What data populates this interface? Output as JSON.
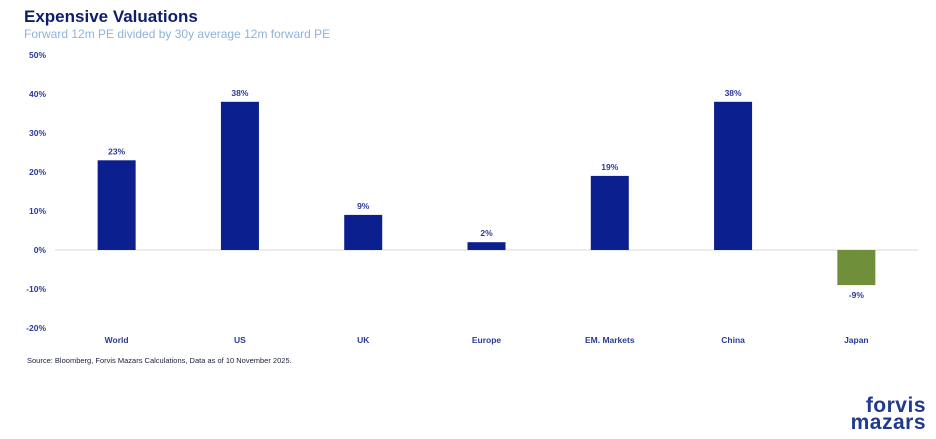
{
  "header": {
    "title": "Expensive Valuations",
    "subtitle": "Forward 12m PE divided by 30y average 12m forward PE"
  },
  "footer": {
    "source": "Source: Bloomberg, Forvis Mazars Calculations, Data as of 10 November 2025.",
    "logo_line1": "forvis",
    "logo_line2": "mazars"
  },
  "colors": {
    "bar_primary": "#0b1f8f",
    "bar_negative": "#6f8f3a",
    "text_dark": "#0d1f6b",
    "subtitle": "#8fb3d9"
  },
  "chart_data": {
    "type": "bar",
    "title": "Expensive Valuations",
    "subtitle": "Forward 12m PE divided by 30y average 12m forward PE",
    "xlabel": "",
    "ylabel": "",
    "categories": [
      "World",
      "US",
      "UK",
      "Europe",
      "EM. Markets",
      "China",
      "Japan"
    ],
    "values": [
      23,
      38,
      9,
      2,
      19,
      38,
      -9
    ],
    "data_labels": [
      "23%",
      "38%",
      "9%",
      "2%",
      "19%",
      "38%",
      "-9%"
    ],
    "ylim": [
      -20,
      50
    ],
    "yticks": [
      50,
      40,
      30,
      20,
      10,
      0,
      -10,
      -20
    ],
    "ytick_labels": [
      "50%",
      "40%",
      "30%",
      "20%",
      "10%",
      "0%",
      "-10%",
      "-20%"
    ],
    "grid": false,
    "legend": "none"
  }
}
